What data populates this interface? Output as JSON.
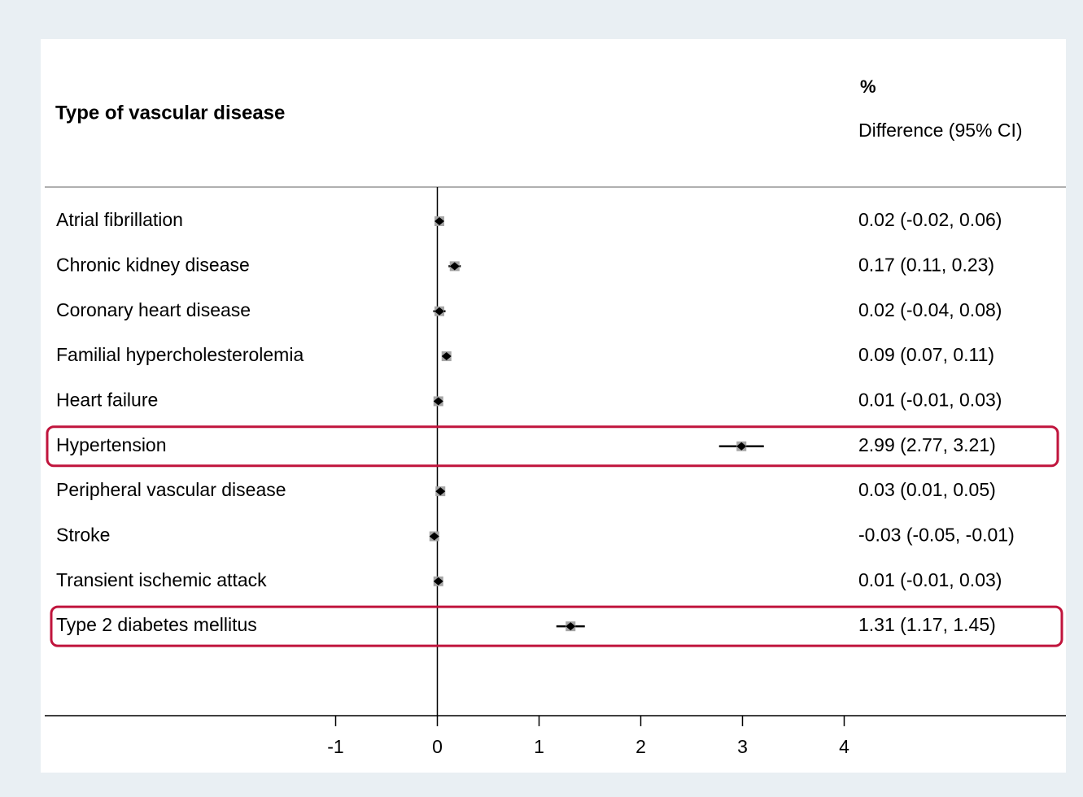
{
  "chart_data": {
    "type": "forest",
    "title": "Type of vascular disease",
    "column_header_top": "%",
    "column_header": "Difference (95% CI)",
    "categories": [
      "Atrial fibrillation",
      "Chronic kidney disease",
      "Coronary heart disease",
      "Familial hypercholesterolemia",
      "Heart failure",
      "Hypertension",
      "Peripheral vascular disease",
      "Stroke",
      "Transient ischemic attack",
      "Type 2 diabetes mellitus"
    ],
    "values": [
      0.02,
      0.17,
      0.02,
      0.09,
      0.01,
      2.99,
      0.03,
      -0.03,
      0.01,
      1.31
    ],
    "ci_lower": [
      -0.02,
      0.11,
      -0.04,
      0.07,
      -0.01,
      2.77,
      0.01,
      -0.05,
      -0.01,
      1.17
    ],
    "ci_upper": [
      0.06,
      0.23,
      0.08,
      0.11,
      0.03,
      3.21,
      0.05,
      -0.01,
      0.03,
      1.45
    ],
    "value_labels": [
      "0.02 (-0.02, 0.06)",
      "0.17 (0.11, 0.23)",
      "0.02 (-0.04, 0.08)",
      "0.09 (0.07, 0.11)",
      "0.01 (-0.01, 0.03)",
      "2.99 (2.77, 3.21)",
      "0.03 (0.01, 0.05)",
      "-0.03 (-0.05, -0.01)",
      "0.01 (-0.01, 0.03)",
      "1.31 (1.17, 1.45)"
    ],
    "xlim": [
      -3.86,
      6.18
    ],
    "xticks": [
      -1,
      0,
      1,
      2,
      3,
      4
    ],
    "reference_line": 0,
    "highlight": [
      5,
      9
    ],
    "highlight_color": "#c0143c",
    "marker_color": "#000000",
    "box_color": "#a6a6a6"
  }
}
